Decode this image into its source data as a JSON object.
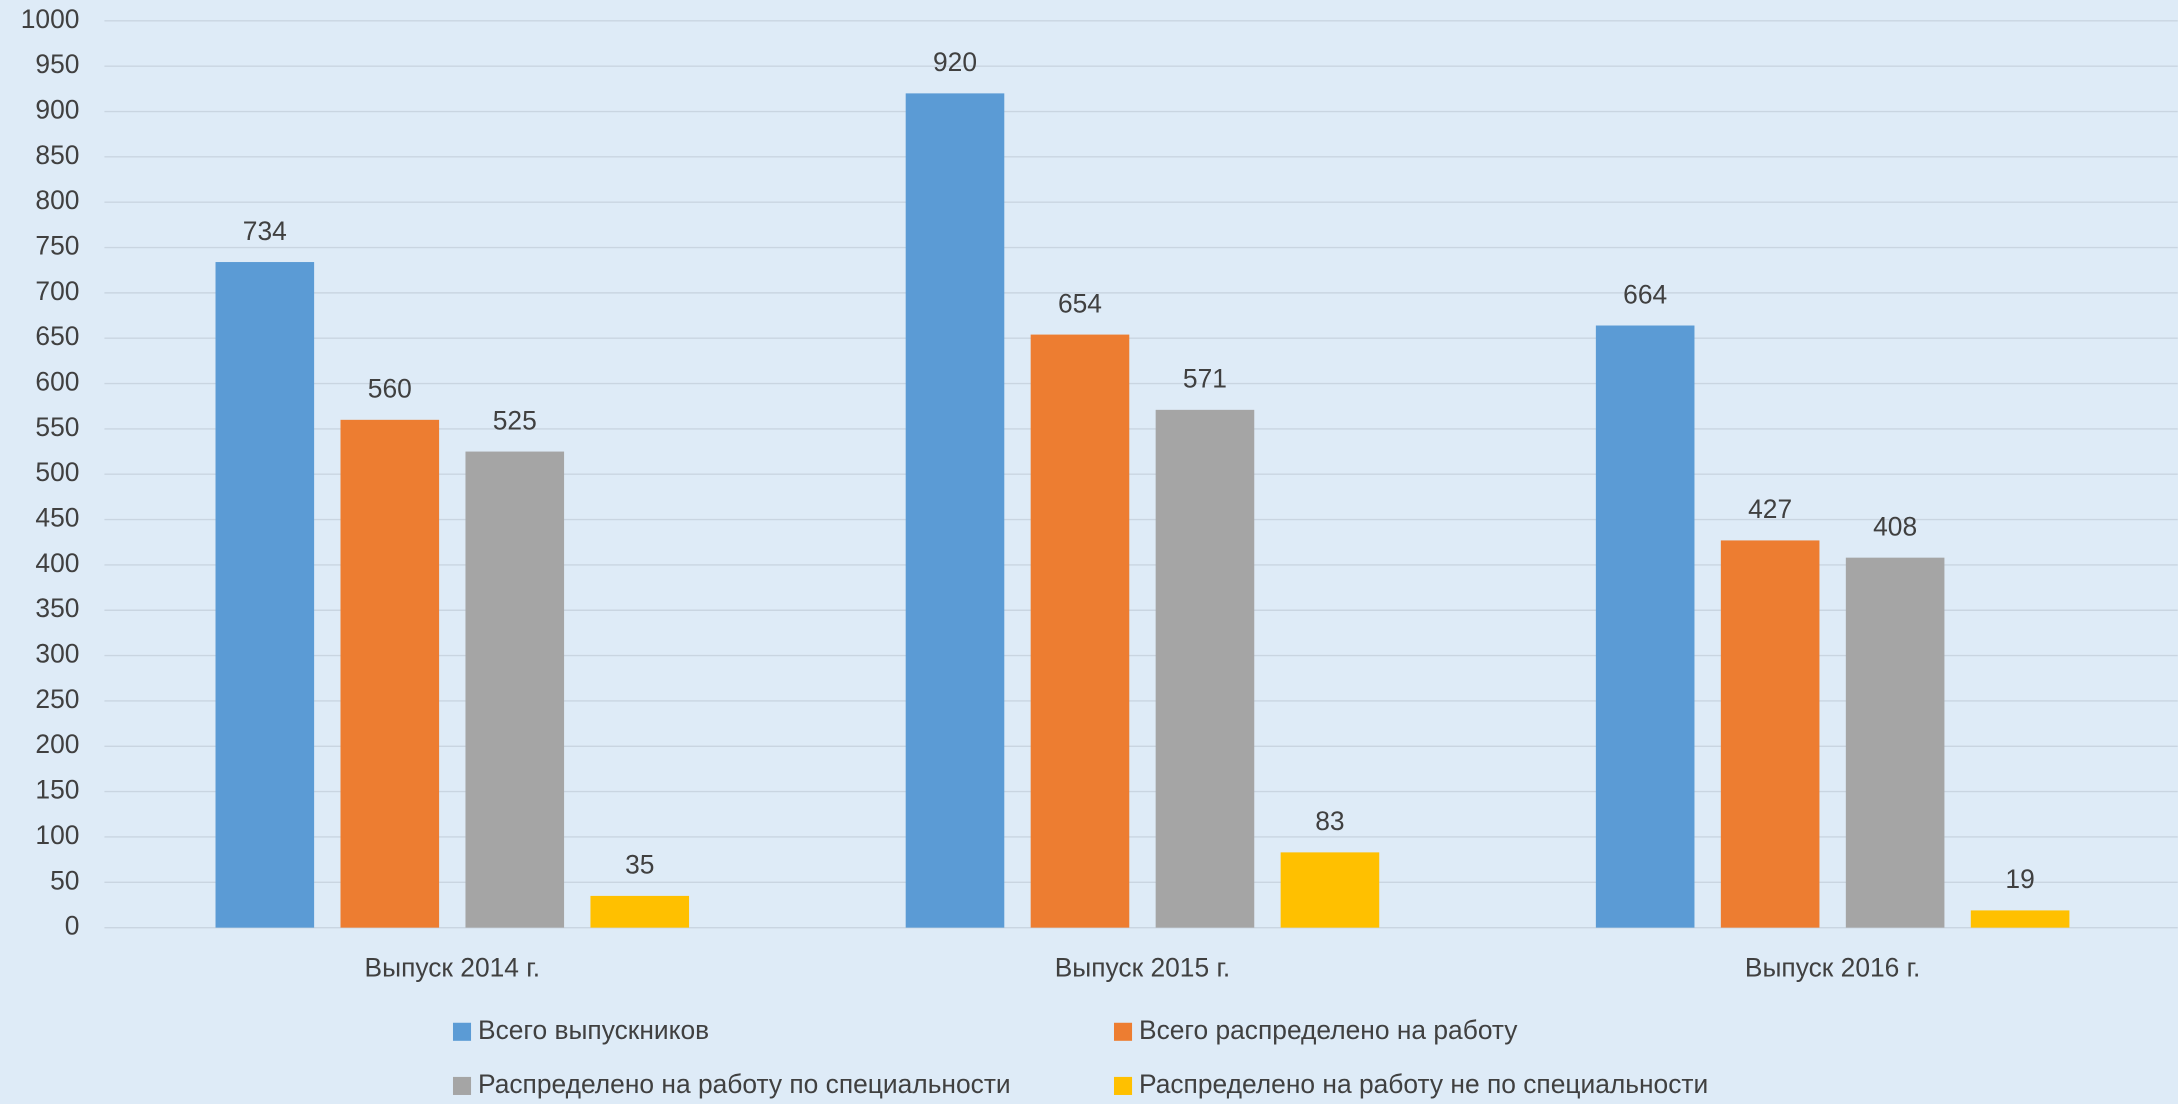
{
  "chart_data": {
    "type": "bar",
    "categories": [
      "Выпуск 2014 г.",
      "Выпуск 2015 г.",
      "Выпуск 2016 г."
    ],
    "series": [
      {
        "name": "Всего выпускников",
        "color": "#5b9bd5",
        "values": [
          734,
          920,
          664
        ]
      },
      {
        "name": "Всего распределено на работу",
        "color": "#ed7d31",
        "values": [
          560,
          654,
          427
        ]
      },
      {
        "name": "Распределено на работу по специальности",
        "color": "#a5a5a5",
        "values": [
          525,
          571,
          408
        ]
      },
      {
        "name": "Распределено на работу не по специальности",
        "color": "#ffc000",
        "values": [
          35,
          83,
          19
        ]
      }
    ],
    "ylim": [
      0,
      1000
    ],
    "yticks": [
      0,
      50,
      100,
      150,
      200,
      250,
      300,
      350,
      400,
      450,
      500,
      550,
      600,
      650,
      700,
      750,
      800,
      850,
      900,
      950,
      1000
    ],
    "grid": true,
    "legend": "bottom"
  }
}
